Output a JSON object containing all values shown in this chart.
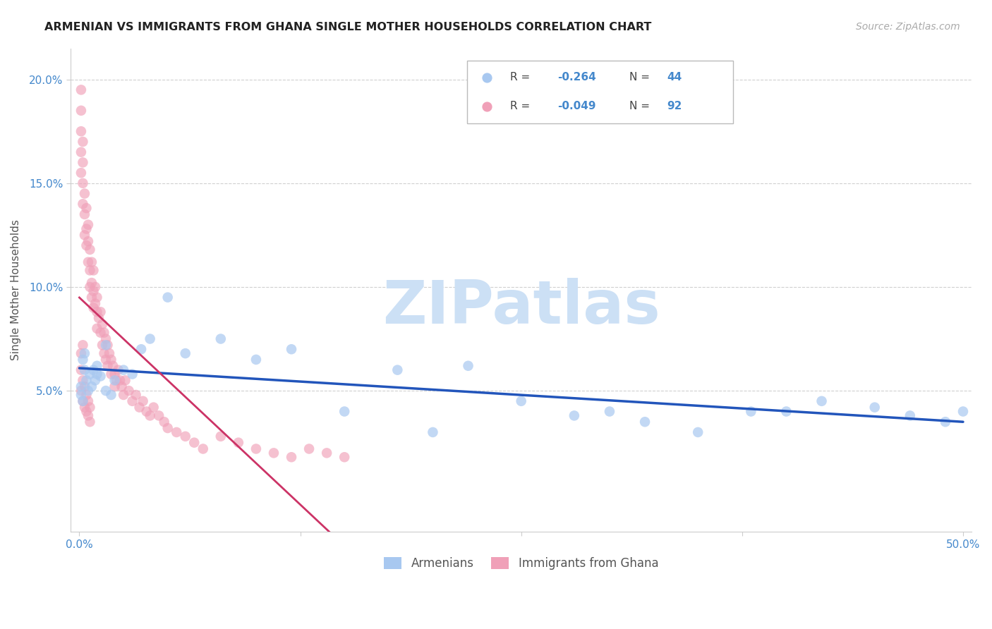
{
  "title": "ARMENIAN VS IMMIGRANTS FROM GHANA SINGLE MOTHER HOUSEHOLDS CORRELATION CHART",
  "source": "Source: ZipAtlas.com",
  "ylabel": "Single Mother Households",
  "xlim": [
    -0.005,
    0.505
  ],
  "ylim": [
    -0.018,
    0.215
  ],
  "yticks": [
    0.05,
    0.1,
    0.15,
    0.2
  ],
  "ytick_labels": [
    "5.0%",
    "10.0%",
    "15.0%",
    "20.0%"
  ],
  "xticks": [
    0.0,
    0.125,
    0.25,
    0.375,
    0.5
  ],
  "xtick_labels": [
    "0.0%",
    "",
    "",
    "",
    "50.0%"
  ],
  "armenian_R": -0.264,
  "armenian_N": 44,
  "ghana_R": -0.049,
  "ghana_N": 92,
  "legend_label_armenian": "Armenians",
  "legend_label_ghana": "Immigrants from Ghana",
  "color_armenian": "#a8c8f0",
  "color_ghana": "#f0a0b8",
  "color_line_armenian": "#2255bb",
  "color_line_ghana": "#cc3366",
  "watermark_text": "ZIPatlas",
  "watermark_color": "#cce0f5",
  "grid_color": "#d0d0d0",
  "title_color": "#222222",
  "source_color": "#aaaaaa",
  "axis_tick_color": "#4488cc",
  "ylabel_color": "#555555",
  "armenian_x": [
    0.002,
    0.003,
    0.004,
    0.005,
    0.006,
    0.007,
    0.008,
    0.009,
    0.01,
    0.012,
    0.015,
    0.018,
    0.02,
    0.025,
    0.03,
    0.035,
    0.04,
    0.05,
    0.06,
    0.08,
    0.1,
    0.12,
    0.15,
    0.18,
    0.2,
    0.22,
    0.25,
    0.28,
    0.3,
    0.32,
    0.35,
    0.38,
    0.4,
    0.42,
    0.45,
    0.47,
    0.49,
    0.5,
    0.001,
    0.001,
    0.002,
    0.003,
    0.01,
    0.015
  ],
  "armenian_y": [
    0.065,
    0.06,
    0.055,
    0.05,
    0.058,
    0.052,
    0.06,
    0.055,
    0.062,
    0.057,
    0.05,
    0.048,
    0.055,
    0.06,
    0.058,
    0.07,
    0.075,
    0.095,
    0.068,
    0.075,
    0.065,
    0.07,
    0.04,
    0.06,
    0.03,
    0.062,
    0.045,
    0.038,
    0.04,
    0.035,
    0.03,
    0.04,
    0.04,
    0.045,
    0.042,
    0.038,
    0.035,
    0.04,
    0.048,
    0.052,
    0.045,
    0.068,
    0.058,
    0.072
  ],
  "ghana_x": [
    0.001,
    0.001,
    0.001,
    0.001,
    0.001,
    0.002,
    0.002,
    0.002,
    0.002,
    0.003,
    0.003,
    0.003,
    0.004,
    0.004,
    0.004,
    0.005,
    0.005,
    0.005,
    0.006,
    0.006,
    0.006,
    0.007,
    0.007,
    0.007,
    0.008,
    0.008,
    0.008,
    0.009,
    0.009,
    0.01,
    0.01,
    0.01,
    0.011,
    0.012,
    0.012,
    0.013,
    0.013,
    0.014,
    0.014,
    0.015,
    0.015,
    0.016,
    0.016,
    0.017,
    0.018,
    0.018,
    0.019,
    0.02,
    0.02,
    0.021,
    0.022,
    0.023,
    0.024,
    0.025,
    0.026,
    0.028,
    0.03,
    0.032,
    0.034,
    0.036,
    0.038,
    0.04,
    0.042,
    0.045,
    0.048,
    0.05,
    0.055,
    0.06,
    0.065,
    0.07,
    0.08,
    0.09,
    0.1,
    0.11,
    0.12,
    0.13,
    0.14,
    0.15,
    0.001,
    0.001,
    0.002,
    0.002,
    0.003,
    0.003,
    0.004,
    0.004,
    0.005,
    0.005,
    0.006,
    0.006,
    0.001,
    0.002
  ],
  "ghana_y": [
    0.185,
    0.195,
    0.175,
    0.165,
    0.155,
    0.17,
    0.16,
    0.15,
    0.14,
    0.145,
    0.135,
    0.125,
    0.138,
    0.128,
    0.12,
    0.13,
    0.122,
    0.112,
    0.118,
    0.108,
    0.1,
    0.112,
    0.102,
    0.095,
    0.108,
    0.098,
    0.09,
    0.1,
    0.092,
    0.095,
    0.088,
    0.08,
    0.085,
    0.088,
    0.078,
    0.082,
    0.072,
    0.078,
    0.068,
    0.075,
    0.065,
    0.072,
    0.062,
    0.068,
    0.065,
    0.058,
    0.062,
    0.058,
    0.052,
    0.055,
    0.06,
    0.055,
    0.052,
    0.048,
    0.055,
    0.05,
    0.045,
    0.048,
    0.042,
    0.045,
    0.04,
    0.038,
    0.042,
    0.038,
    0.035,
    0.032,
    0.03,
    0.028,
    0.025,
    0.022,
    0.028,
    0.025,
    0.022,
    0.02,
    0.018,
    0.022,
    0.02,
    0.018,
    0.06,
    0.05,
    0.055,
    0.045,
    0.052,
    0.042,
    0.048,
    0.04,
    0.045,
    0.038,
    0.042,
    0.035,
    0.068,
    0.072
  ]
}
